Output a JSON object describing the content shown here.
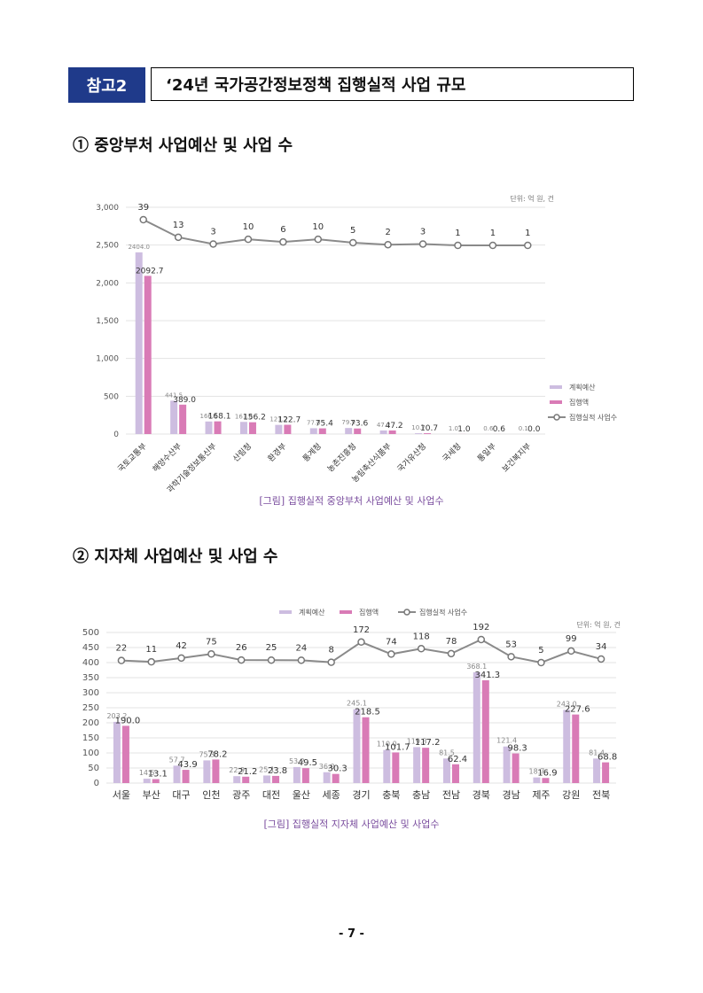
{
  "header": {
    "tag": "참고2",
    "title": "‘24년 국가공간정보정책 집행실적 사업 규모"
  },
  "section1": {
    "title": "① 중앙부처 사업예산 및 사업 수"
  },
  "section2": {
    "title": "② 지자체 사업예산 및 사업 수"
  },
  "page_number": "- 7 -",
  "colors": {
    "plan": "#cdbde0",
    "exec": "#d97bb6",
    "line": "#8a8a8a",
    "header_bg": "#1f3a8a",
    "caption": "#7a4d9e"
  },
  "chart_data": [
    {
      "type": "bar",
      "title": "",
      "caption": "[그림] 집행실적 중앙부처 사업예산 및 사업수",
      "unit": "단위: 억 원, 건",
      "categories": [
        "국토교통부",
        "해양수산부",
        "과학기술정보통신부",
        "산림청",
        "환경부",
        "통계청",
        "농촌진흥청",
        "농림축산식품부",
        "국가유산청",
        "국세청",
        "통일부",
        "보건복지부"
      ],
      "series": [
        {
          "name": "계획예산",
          "values": [
            2404.0,
            441.5,
            166.1,
            161.0,
            121.2,
            77.0,
            79.9,
            47.2,
            10.7,
            1.0,
            0.6,
            0.1
          ]
        },
        {
          "name": "집행액",
          "values": [
            2092.7,
            389.0,
            168.1,
            156.2,
            122.7,
            75.4,
            73.6,
            47.2,
            10.7,
            1.0,
            0.6,
            0.0
          ]
        },
        {
          "name": "집행실적 사업수",
          "values": [
            39,
            13,
            3,
            10,
            6,
            10,
            5,
            2,
            3,
            1,
            1,
            1
          ]
        }
      ],
      "plan_labels": [
        "2404.0",
        "441.5",
        "166.1",
        "161.0",
        "121.2",
        "77.0",
        "79.9",
        "47.2",
        "10.7",
        "1.0",
        "0.6",
        "0.1"
      ],
      "exec_labels": [
        "2092.7",
        "389.0",
        "168.1",
        "156.2",
        "122.7",
        "75.4",
        "73.6",
        "47.2",
        "10.7",
        "1.0",
        "0.6",
        "0.0"
      ],
      "yticks": [
        "0",
        "500",
        "1,000",
        "1,500",
        "2,000",
        "2,500",
        "3,000"
      ],
      "ylim": [
        0,
        3000
      ],
      "legend": [
        "계획예산",
        "집행액",
        "집행실적 사업수"
      ],
      "legend_position": "right",
      "grid": true
    },
    {
      "type": "bar",
      "title": "",
      "caption": "[그림] 집행실적 지자체 사업예산 및 사업수",
      "unit": "단위: 억 원, 건",
      "categories": [
        "서울",
        "부산",
        "대구",
        "인천",
        "광주",
        "대전",
        "울산",
        "세종",
        "경기",
        "충북",
        "충남",
        "전남",
        "경북",
        "경남",
        "제주",
        "강원",
        "전북"
      ],
      "series": [
        {
          "name": "계획예산",
          "values": [
            203.2,
            14.5,
            57.7,
            75.3,
            22.9,
            25.1,
            53.2,
            36.0,
            245.1,
            110.0,
            119.3,
            81.5,
            368.1,
            121.4,
            18.7,
            243.0,
            81.4
          ]
        },
        {
          "name": "집행액",
          "values": [
            190.0,
            13.1,
            43.9,
            78.2,
            21.2,
            23.8,
            49.5,
            30.3,
            218.5,
            101.7,
            117.2,
            62.4,
            341.3,
            98.3,
            16.9,
            227.6,
            68.8
          ]
        },
        {
          "name": "집행실적 사업수",
          "values": [
            22,
            11,
            42,
            75,
            26,
            25,
            24,
            8,
            172,
            74,
            118,
            78,
            192,
            53,
            5,
            99,
            34
          ]
        }
      ],
      "plan_labels": [
        "203.2",
        "14.5",
        "57.7",
        "75.3",
        "22.9",
        "25.1",
        "53.2",
        "36.0",
        "245.1",
        "110.0",
        "119.3",
        "81.5",
        "368.1",
        "121.4",
        "18.7",
        "243.0",
        "81.4"
      ],
      "exec_labels": [
        "190.0",
        "13.1",
        "43.9",
        "78.2",
        "21.2",
        "23.8",
        "49.5",
        "30.3",
        "218.5",
        "101.7",
        "117.2",
        "62.4",
        "341.3",
        "98.3",
        "16.9",
        "227.6",
        "68.8"
      ],
      "yticks": [
        "0",
        "50",
        "100",
        "150",
        "200",
        "250",
        "300",
        "350",
        "400",
        "450",
        "500"
      ],
      "ylim": [
        0,
        500
      ],
      "legend": [
        "계획예산",
        "집행액",
        "집행실적 사업수"
      ],
      "legend_position": "top",
      "grid": true
    }
  ]
}
